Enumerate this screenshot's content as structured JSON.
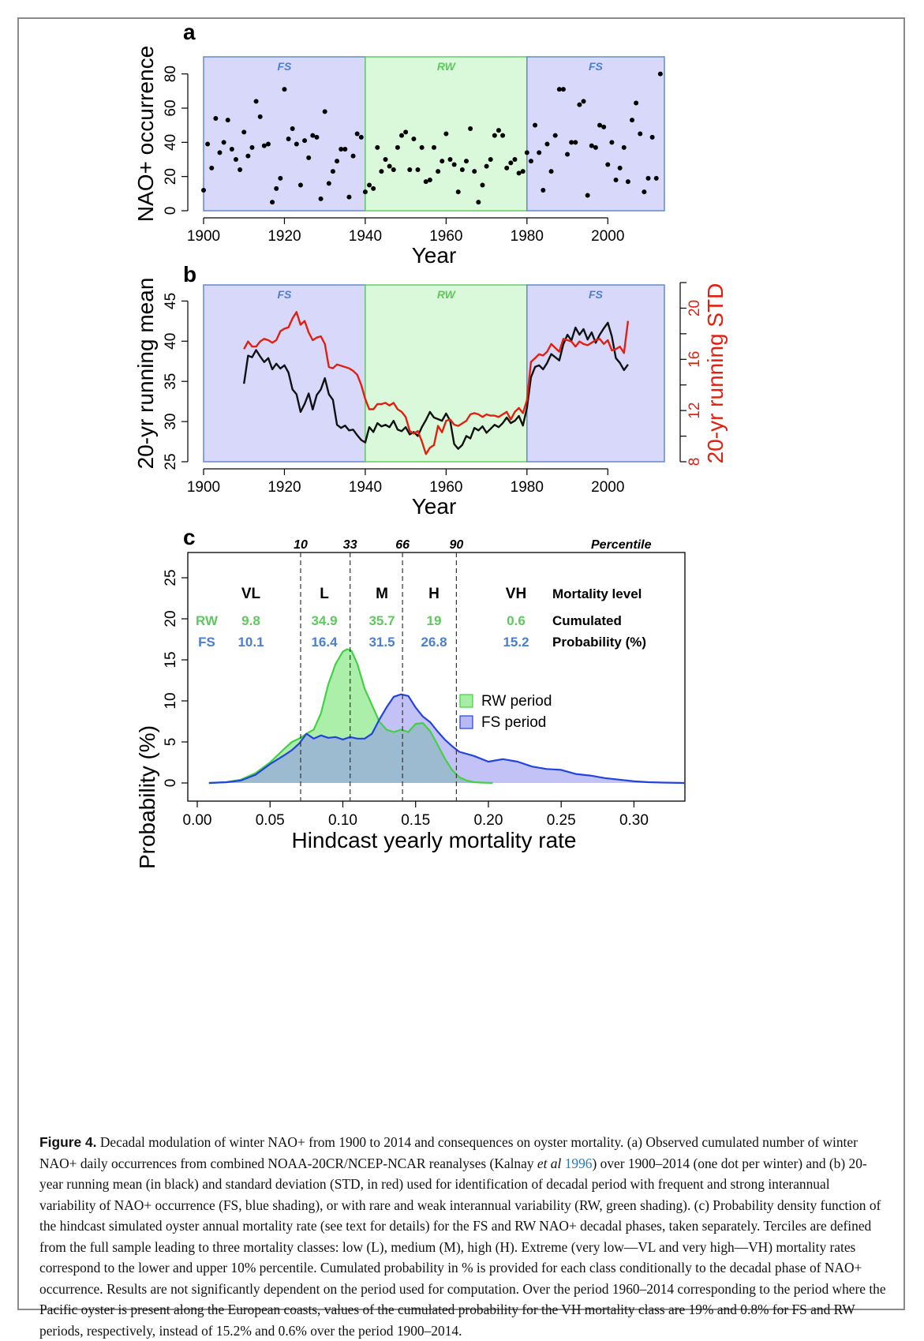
{
  "chart_data": [
    {
      "panel_label": "a",
      "type": "scatter",
      "xlabel": "Year",
      "ylabel": "NAO+ occurrence",
      "xlim": [
        1900,
        2014
      ],
      "ylim": [
        0,
        90
      ],
      "xticks": [
        "1900",
        "1920",
        "1940",
        "1960",
        "1980",
        "2000"
      ],
      "yticks": [
        "0",
        "20",
        "40",
        "60",
        "80"
      ],
      "periods": [
        {
          "label": "FS",
          "start": 1900,
          "end": 1940,
          "color": "#d8d8fb",
          "edge": "#6688cc",
          "label_color": "#4a7fd0"
        },
        {
          "label": "RW",
          "start": 1940,
          "end": 1980,
          "color": "#daf8da",
          "edge": "#66cc66",
          "label_color": "#5fc85f"
        },
        {
          "label": "FS",
          "start": 1980,
          "end": 2014,
          "color": "#d8d8fb",
          "edge": "#6688cc",
          "label_color": "#4a7fd0"
        }
      ],
      "x": [
        1900,
        1901,
        1902,
        1903,
        1904,
        1905,
        1906,
        1907,
        1908,
        1909,
        1910,
        1911,
        1912,
        1913,
        1914,
        1915,
        1916,
        1917,
        1918,
        1919,
        1920,
        1921,
        1922,
        1923,
        1924,
        1925,
        1926,
        1927,
        1928,
        1929,
        1930,
        1931,
        1932,
        1933,
        1934,
        1935,
        1936,
        1937,
        1938,
        1939,
        1940,
        1941,
        1942,
        1943,
        1944,
        1945,
        1946,
        1947,
        1948,
        1949,
        1950,
        1951,
        1952,
        1953,
        1954,
        1955,
        1956,
        1957,
        1958,
        1959,
        1960,
        1961,
        1962,
        1963,
        1964,
        1965,
        1966,
        1967,
        1968,
        1969,
        1970,
        1971,
        1972,
        1973,
        1974,
        1975,
        1976,
        1977,
        1978,
        1979,
        1980,
        1981,
        1982,
        1983,
        1984,
        1985,
        1986,
        1987,
        1988,
        1989,
        1990,
        1991,
        1992,
        1993,
        1994,
        1995,
        1996,
        1997,
        1998,
        1999,
        2000,
        2001,
        2002,
        2003,
        2004,
        2005,
        2006,
        2007,
        2008,
        2009,
        2010,
        2011,
        2012,
        2013
      ],
      "y": [
        12,
        39,
        25,
        54,
        34,
        40,
        53,
        36,
        30,
        24,
        46,
        32,
        37,
        64,
        55,
        38,
        39,
        5,
        13,
        19,
        71,
        42,
        48,
        39,
        15,
        41,
        31,
        44,
        43,
        7,
        58,
        16,
        23,
        29,
        36,
        36,
        8,
        32,
        45,
        43,
        11,
        15,
        13,
        37,
        23,
        30,
        26,
        24,
        37,
        44,
        46,
        24,
        42,
        24,
        37,
        17,
        18,
        37,
        23,
        29,
        45,
        30,
        27,
        11,
        24,
        29,
        48,
        23,
        5,
        15,
        26,
        30,
        44,
        47,
        44,
        25,
        28,
        30,
        22,
        23,
        34,
        29,
        50,
        34,
        12,
        39,
        23,
        44,
        71,
        71,
        33,
        40,
        40,
        62,
        64,
        9,
        38,
        37,
        50,
        49,
        27,
        40,
        18,
        25,
        37,
        17,
        53,
        63,
        45,
        11,
        19,
        43,
        19,
        80
      ]
    },
    {
      "panel_label": "b",
      "type": "line",
      "xlabel": "Year",
      "ylabel": "20-yr running mean",
      "ylabel_right": "20-yr running STD",
      "xlim": [
        1900,
        2014
      ],
      "ylim": [
        25,
        47
      ],
      "ylim_right": [
        8,
        22
      ],
      "xticks": [
        "1900",
        "1920",
        "1940",
        "1960",
        "1980",
        "2000"
      ],
      "yticks": [
        "25",
        "30",
        "35",
        "40",
        "45"
      ],
      "yticks_right": [
        "8",
        "12",
        "16",
        "20"
      ],
      "periods": [
        {
          "label": "FS",
          "start": 1900,
          "end": 1940
        },
        {
          "label": "RW",
          "start": 1940,
          "end": 1980
        },
        {
          "label": "FS",
          "start": 1980,
          "end": 2014
        }
      ],
      "series": [
        {
          "axis": "left",
          "color": "#111111",
          "x": [
            1910,
            1911,
            1912,
            1913,
            1914,
            1915,
            1916,
            1917,
            1918,
            1919,
            1920,
            1921,
            1922,
            1923,
            1924,
            1925,
            1926,
            1927,
            1928,
            1929,
            1930,
            1931,
            1932,
            1933,
            1934,
            1935,
            1936,
            1937,
            1938,
            1939,
            1940,
            1941,
            1942,
            1943,
            1944,
            1945,
            1946,
            1947,
            1948,
            1949,
            1950,
            1951,
            1952,
            1953,
            1954,
            1955,
            1956,
            1957,
            1958,
            1959,
            1960,
            1961,
            1962,
            1963,
            1964,
            1965,
            1966,
            1967,
            1968,
            1969,
            1970,
            1971,
            1972,
            1973,
            1974,
            1975,
            1976,
            1977,
            1978,
            1979,
            1980,
            1981,
            1982,
            1983,
            1984,
            1985,
            1986,
            1987,
            1988,
            1989,
            1990,
            1991,
            1992,
            1993,
            1994,
            1995,
            1996,
            1997,
            1998,
            1999,
            2000,
            2001,
            2002,
            2003,
            2004,
            2005
          ],
          "y": [
            34.7,
            38.2,
            38,
            38.9,
            38.1,
            37.4,
            37.9,
            36.5,
            37.2,
            36.6,
            37,
            36.1,
            34,
            33.4,
            31.2,
            32.2,
            33.5,
            31.5,
            33.3,
            34,
            35.4,
            33.4,
            32.7,
            29.6,
            29.2,
            29.5,
            28.9,
            29,
            28.3,
            27.7,
            27.4,
            29.3,
            28.7,
            29.8,
            29.4,
            29.6,
            29.3,
            30.1,
            29,
            28.8,
            29.3,
            28.4,
            28.7,
            28.2,
            29.3,
            30.2,
            31.2,
            30.5,
            30.3,
            30.1,
            31,
            30.1,
            27.2,
            26.6,
            27.1,
            28.2,
            27.9,
            29.2,
            28.9,
            29.4,
            28.6,
            29.1,
            29.6,
            29.3,
            29.8,
            30.5,
            29.8,
            30.1,
            30.7,
            29.5,
            31.7,
            35.5,
            36.8,
            37,
            36.5,
            37.3,
            38.4,
            38,
            37.6,
            39.6,
            40.8,
            40.1,
            41.7,
            40.8,
            41.5,
            40.2,
            41.1,
            39.8,
            40.8,
            41.6,
            42.3,
            40.6,
            37.9,
            37.3,
            36.4,
            37.1
          ]
        },
        {
          "axis": "right",
          "color": "#e02010",
          "x": [
            1910,
            1911,
            1912,
            1913,
            1914,
            1915,
            1916,
            1917,
            1918,
            1919,
            1920,
            1921,
            1922,
            1923,
            1924,
            1925,
            1926,
            1927,
            1928,
            1929,
            1930,
            1931,
            1932,
            1933,
            1934,
            1935,
            1936,
            1937,
            1938,
            1939,
            1940,
            1941,
            1942,
            1943,
            1944,
            1945,
            1946,
            1947,
            1948,
            1949,
            1950,
            1951,
            1952,
            1953,
            1954,
            1955,
            1956,
            1957,
            1958,
            1959,
            1960,
            1961,
            1962,
            1963,
            1964,
            1965,
            1966,
            1967,
            1968,
            1969,
            1970,
            1971,
            1972,
            1973,
            1974,
            1975,
            1976,
            1977,
            1978,
            1979,
            1980,
            1981,
            1982,
            1983,
            1984,
            1985,
            1986,
            1987,
            1988,
            1989,
            1990,
            1991,
            1992,
            1993,
            1994,
            1995,
            1996,
            1997,
            1998,
            1999,
            2000,
            2001,
            2002,
            2003,
            2004,
            2005
          ],
          "y": [
            16.8,
            17.4,
            17,
            17,
            17.4,
            17.6,
            17.5,
            17.3,
            17.5,
            18.2,
            18.4,
            18.5,
            19.2,
            19.7,
            18.7,
            19,
            18.1,
            17.5,
            17.7,
            17.8,
            17.2,
            15.4,
            15.3,
            15.6,
            15.5,
            15.4,
            15.3,
            15.1,
            14.8,
            14,
            12.9,
            12.1,
            12.1,
            12.5,
            12.5,
            12.6,
            12.4,
            12.6,
            12.1,
            11.9,
            11.5,
            10.4,
            10.2,
            10.4,
            9.6,
            8.6,
            9.1,
            9.3,
            10.8,
            10.3,
            11.2,
            11.3,
            10.9,
            10.8,
            11,
            11.2,
            11.7,
            11.8,
            11.7,
            11.5,
            11.7,
            11.6,
            11.6,
            11.5,
            11.7,
            11.9,
            11.3,
            11.9,
            12.2,
            11.8,
            12.8,
            15.8,
            16.1,
            16.4,
            16.3,
            16.6,
            17.2,
            16.9,
            16.6,
            17.6,
            17.5,
            17.4,
            17,
            17.4,
            17.2,
            17.1,
            17.3,
            17.5,
            17.6,
            17.2,
            17.5,
            16.7,
            16.8,
            17,
            16.5,
            19
          ]
        }
      ]
    },
    {
      "panel_label": "c",
      "type": "area",
      "xlabel": "Hindcast yearly mortality rate",
      "ylabel": "Probability (%)",
      "xlim": [
        0,
        0.335
      ],
      "ylim": [
        0,
        26
      ],
      "xticks": [
        "0.00",
        "0.05",
        "0.10",
        "0.15",
        "0.20",
        "0.25",
        "0.30"
      ],
      "yticks": [
        "0",
        "5",
        "10",
        "15",
        "20",
        "25"
      ],
      "percentiles": {
        "header": "Percentile",
        "labels": [
          "10",
          "33",
          "66",
          "90"
        ],
        "x": [
          0.071,
          0.105,
          0.141,
          0.178
        ]
      },
      "mortality_header": "Mortality level",
      "classes": [
        "VL",
        "L",
        "M",
        "H",
        "VH"
      ],
      "prob_header_1": "Cumulated",
      "prob_header_2": "Probability (%)",
      "rows": [
        {
          "name": "RW",
          "color": "#5fc85f",
          "values": [
            "9.8",
            "34.9",
            "35.7",
            "19",
            "0.6"
          ]
        },
        {
          "name": "FS",
          "color": "#4a7fd0",
          "values": [
            "10.1",
            "16.4",
            "31.5",
            "26.8",
            "15.2"
          ]
        }
      ],
      "legend": {
        "position": "center-right",
        "items": [
          "RW period",
          "FS period"
        ]
      },
      "series": [
        {
          "name": "RW period",
          "fill": "#7ee77e",
          "fill_opacity": 0.65,
          "line": "#44d044",
          "x": [
            0.008,
            0.02,
            0.03,
            0.04,
            0.05,
            0.06,
            0.065,
            0.07,
            0.075,
            0.08,
            0.085,
            0.09,
            0.095,
            0.1,
            0.103,
            0.106,
            0.11,
            0.115,
            0.12,
            0.125,
            0.13,
            0.135,
            0.14,
            0.145,
            0.15,
            0.155,
            0.16,
            0.165,
            0.17,
            0.175,
            0.18,
            0.185,
            0.19,
            0.195,
            0.2,
            0.203
          ],
          "y": [
            0,
            0.1,
            0.4,
            1.2,
            2.5,
            4.2,
            5,
            5.4,
            6,
            6.5,
            8.5,
            12,
            14.5,
            16,
            16.3,
            16.1,
            14.5,
            11.5,
            9.5,
            7.5,
            6.5,
            6.2,
            6.5,
            6.2,
            7.2,
            7.3,
            6.3,
            4.7,
            3,
            1.6,
            0.7,
            0.3,
            0.1,
            0.05,
            0.02,
            0
          ]
        },
        {
          "name": "FS period",
          "fill": "#8f8ff0",
          "fill_opacity": 0.55,
          "line": "#2244dd",
          "x": [
            0.008,
            0.02,
            0.03,
            0.04,
            0.05,
            0.06,
            0.065,
            0.07,
            0.075,
            0.08,
            0.085,
            0.09,
            0.095,
            0.1,
            0.105,
            0.11,
            0.115,
            0.12,
            0.125,
            0.13,
            0.135,
            0.14,
            0.145,
            0.15,
            0.155,
            0.16,
            0.165,
            0.17,
            0.175,
            0.18,
            0.19,
            0.2,
            0.21,
            0.22,
            0.23,
            0.24,
            0.25,
            0.26,
            0.27,
            0.28,
            0.29,
            0.3,
            0.31,
            0.32,
            0.335
          ],
          "y": [
            0,
            0.1,
            0.3,
            1,
            2.3,
            3.4,
            4,
            4.8,
            6,
            5.4,
            5.8,
            5.5,
            5.6,
            5.3,
            5.6,
            5.4,
            5.4,
            6,
            7.7,
            9.2,
            10.5,
            10.8,
            10.6,
            9.2,
            8.1,
            7.4,
            6.3,
            5.3,
            4.5,
            3.8,
            3.3,
            2.6,
            2.9,
            2.6,
            2,
            1.7,
            1.6,
            1.1,
            0.9,
            0.6,
            0.4,
            0.2,
            0.1,
            0.05,
            0
          ]
        }
      ]
    }
  ],
  "caption": {
    "label": "Figure 4.",
    "p1": " Decadal modulation of winter NAO+ from 1900 to 2014 and consequences on oyster mortality. (a) Observed cumulated number of winter NAO+ daily occurrences from combined NOAA-20CR/NCEP-NCAR reanalyses (Kalnay ",
    "etal": "et al",
    "ref_year": "1996",
    "p2": ") over 1900–2014 (one dot per winter) and (b) 20-year running mean (in black) and standard deviation (STD, in red) used for identification of decadal period with frequent and strong interannual variability of NAO+ occurrence (FS, blue shading), or with rare and weak interannual variability (RW, green shading). (c) Probability density function of the hindcast simulated oyster annual mortality rate (see text for details) for the FS and RW NAO+ decadal phases, taken separately. Terciles are defined from the full sample leading to three mortality classes: low (L), medium (M), high (H). Extreme (very low—VL and very high—VH) mortality rates correspond to the lower and upper 10% percentile. Cumulated probability in % is provided for each class conditionally to the decadal phase of NAO+ occurrence. Results are not significantly dependent on the period used for computation. Over the period 1960–2014 corresponding to the period where the Pacific oyster is present along the European coasts, values of the cumulated probability for the VH mortality class are 19% and 0.8% for FS and RW periods, respectively, instead of 15.2% and 0.6% over the period 1900–2014."
  }
}
